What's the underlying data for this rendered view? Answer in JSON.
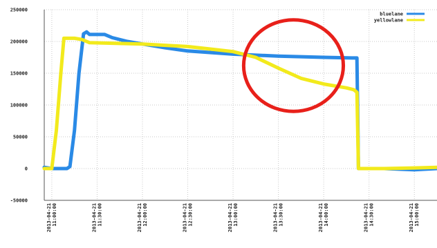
{
  "chart_data": {
    "type": "line",
    "title": "",
    "xlabel": "",
    "ylabel": "",
    "ylim": [
      -50000,
      250000
    ],
    "yticks": [
      -50000,
      0,
      50000,
      100000,
      150000,
      200000,
      250000
    ],
    "ytick_labels": [
      "-50000",
      "0",
      "50000",
      "100000",
      "150000",
      "200000",
      "250000"
    ],
    "xtick_labels": [
      [
        "2013-04-21",
        "11:00:00"
      ],
      [
        "2013-04-21",
        "11:30:00"
      ],
      [
        "2013-04-21",
        "12:00:00"
      ],
      [
        "2013-04-21",
        "12:30:00"
      ],
      [
        "2013-04-21",
        "13:00:00"
      ],
      [
        "2013-04-21",
        "13:30:00"
      ],
      [
        "2013-04-21",
        "14:00:00"
      ],
      [
        "2013-04-21",
        "14:30:00"
      ],
      [
        "2013-04-21",
        "15:00:00"
      ]
    ],
    "x_range": [
      "2013-04-21 10:55:00",
      "2013-04-21 15:15:00"
    ],
    "grid": true,
    "legend_position": "top-right",
    "series": [
      {
        "name": "bluelane",
        "color": "#2a8ae6",
        "points": [
          [
            "2013-04-21 10:55:00",
            2000
          ],
          [
            "2013-04-21 11:00:00",
            0
          ],
          [
            "2013-04-21 11:10:00",
            0
          ],
          [
            "2013-04-21 11:12:00",
            3000
          ],
          [
            "2013-04-21 11:15:00",
            60000
          ],
          [
            "2013-04-21 11:18:00",
            150000
          ],
          [
            "2013-04-21 11:21:00",
            212000
          ],
          [
            "2013-04-21 11:23:00",
            215000
          ],
          [
            "2013-04-21 11:25:00",
            211000
          ],
          [
            "2013-04-21 11:35:00",
            211000
          ],
          [
            "2013-04-21 11:40:00",
            206000
          ],
          [
            "2013-04-21 11:50:00",
            200000
          ],
          [
            "2013-04-21 12:00:00",
            196000
          ],
          [
            "2013-04-21 12:15:00",
            190000
          ],
          [
            "2013-04-21 12:30:00",
            185000
          ],
          [
            "2013-04-21 13:00:00",
            180000
          ],
          [
            "2013-04-21 13:30:00",
            177000
          ],
          [
            "2013-04-21 14:00:00",
            175000
          ],
          [
            "2013-04-21 14:20:00",
            174000
          ],
          [
            "2013-04-21 14:22:00",
            174000
          ],
          [
            "2013-04-21 14:23:00",
            0
          ],
          [
            "2013-04-21 14:40:00",
            0
          ],
          [
            "2013-04-21 15:00:00",
            -2000
          ],
          [
            "2013-04-21 15:15:00",
            0
          ]
        ]
      },
      {
        "name": "yellowlane",
        "color": "#f2ea1c",
        "points": [
          [
            "2013-04-21 10:55:00",
            0
          ],
          [
            "2013-04-21 11:00:00",
            0
          ],
          [
            "2013-04-21 11:03:00",
            60000
          ],
          [
            "2013-04-21 11:06:00",
            150000
          ],
          [
            "2013-04-21 11:08:00",
            205000
          ],
          [
            "2013-04-21 11:15:00",
            205000
          ],
          [
            "2013-04-21 11:20:00",
            203000
          ],
          [
            "2013-04-21 11:25:00",
            198000
          ],
          [
            "2013-04-21 12:00:00",
            196000
          ],
          [
            "2013-04-21 12:30:00",
            192000
          ],
          [
            "2013-04-21 12:45:00",
            188000
          ],
          [
            "2013-04-21 13:00:00",
            184000
          ],
          [
            "2013-04-21 13:15:00",
            175000
          ],
          [
            "2013-04-21 13:30:00",
            158000
          ],
          [
            "2013-04-21 13:45:00",
            142000
          ],
          [
            "2013-04-21 14:00:00",
            133000
          ],
          [
            "2013-04-21 14:15:00",
            127000
          ],
          [
            "2013-04-21 14:20:00",
            124000
          ],
          [
            "2013-04-21 14:22:00",
            120000
          ],
          [
            "2013-04-21 14:23:00",
            0
          ],
          [
            "2013-04-21 14:40:00",
            0
          ],
          [
            "2013-04-21 15:00:00",
            1000
          ],
          [
            "2013-04-21 15:15:00",
            2000
          ]
        ]
      }
    ],
    "annotations": [
      {
        "type": "ellipse",
        "color": "#e8201a",
        "center": [
          "2013-04-21 13:40:00",
          162000
        ],
        "rx_minutes": 33,
        "ry_value": 72000
      }
    ]
  }
}
